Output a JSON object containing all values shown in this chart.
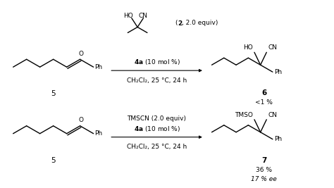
{
  "background_color": "#ffffff",
  "fig_width": 4.74,
  "fig_height": 2.67,
  "dpi": 100,
  "text_color": "#000000",
  "substrate_label": "5",
  "reaction1": {
    "reagent_top": "HO   CN",
    "reagent_top2": "(2, 2.0 equiv)",
    "catalyst": "4a (10 mol %)",
    "solvent": "CH₂Cl₂, 25 °C, 24 h",
    "product_label": "6",
    "product_yield": "<1 %",
    "product_groups": "HO   CN"
  },
  "reaction2": {
    "reagent_top": "TMSCN (2.0 equiv)",
    "catalyst": "4a (10 mol %)",
    "solvent": "CH₂Cl₂, 25 °C, 24 h",
    "product_label": "7",
    "product_yield": "36 %",
    "product_ee": "17 % ee",
    "product_groups": "TMSO   CN"
  }
}
